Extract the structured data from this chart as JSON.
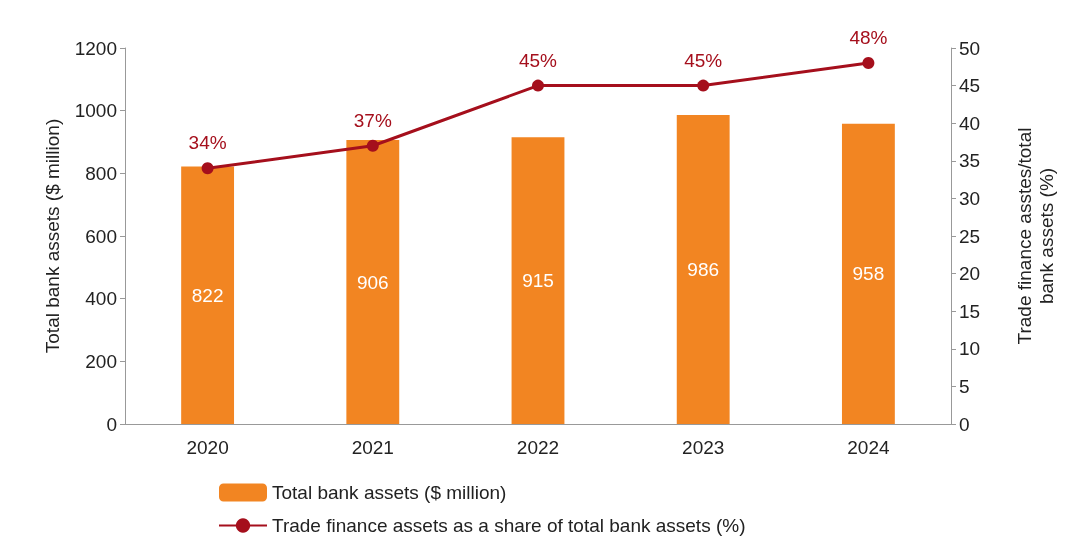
{
  "chart_data": {
    "type": "bar",
    "categories": [
      "2020",
      "2021",
      "2022",
      "2023",
      "2024"
    ],
    "ylabel": "Total bank assets ($ million)",
    "y2label": "Trade finance asstes/total bank assets (%)",
    "ylim": [
      0,
      1200
    ],
    "yticks": [
      0,
      200,
      400,
      600,
      800,
      1000,
      1200
    ],
    "y2lim": [
      0,
      50
    ],
    "y2ticks": [
      0,
      5,
      10,
      15,
      20,
      25,
      30,
      35,
      40,
      45,
      50
    ],
    "series": [
      {
        "name": "Total bank assets ($ million)",
        "color": "#f28522",
        "values": [
          822,
          906,
          915,
          986,
          958
        ],
        "value_labels": [
          "822",
          "906",
          "915",
          "986",
          "958"
        ]
      },
      {
        "name": "Trade finance assets as a share of total bank assets (%)",
        "type": "line",
        "axis": "y2",
        "color": "#a50f1c",
        "values": [
          34,
          37,
          45,
          45,
          48
        ],
        "value_labels": [
          "34%",
          "37%",
          "45%",
          "45%",
          "48%"
        ]
      }
    ],
    "marker": "circle",
    "line_style": "solid",
    "grid": false,
    "legend": "bottom"
  }
}
